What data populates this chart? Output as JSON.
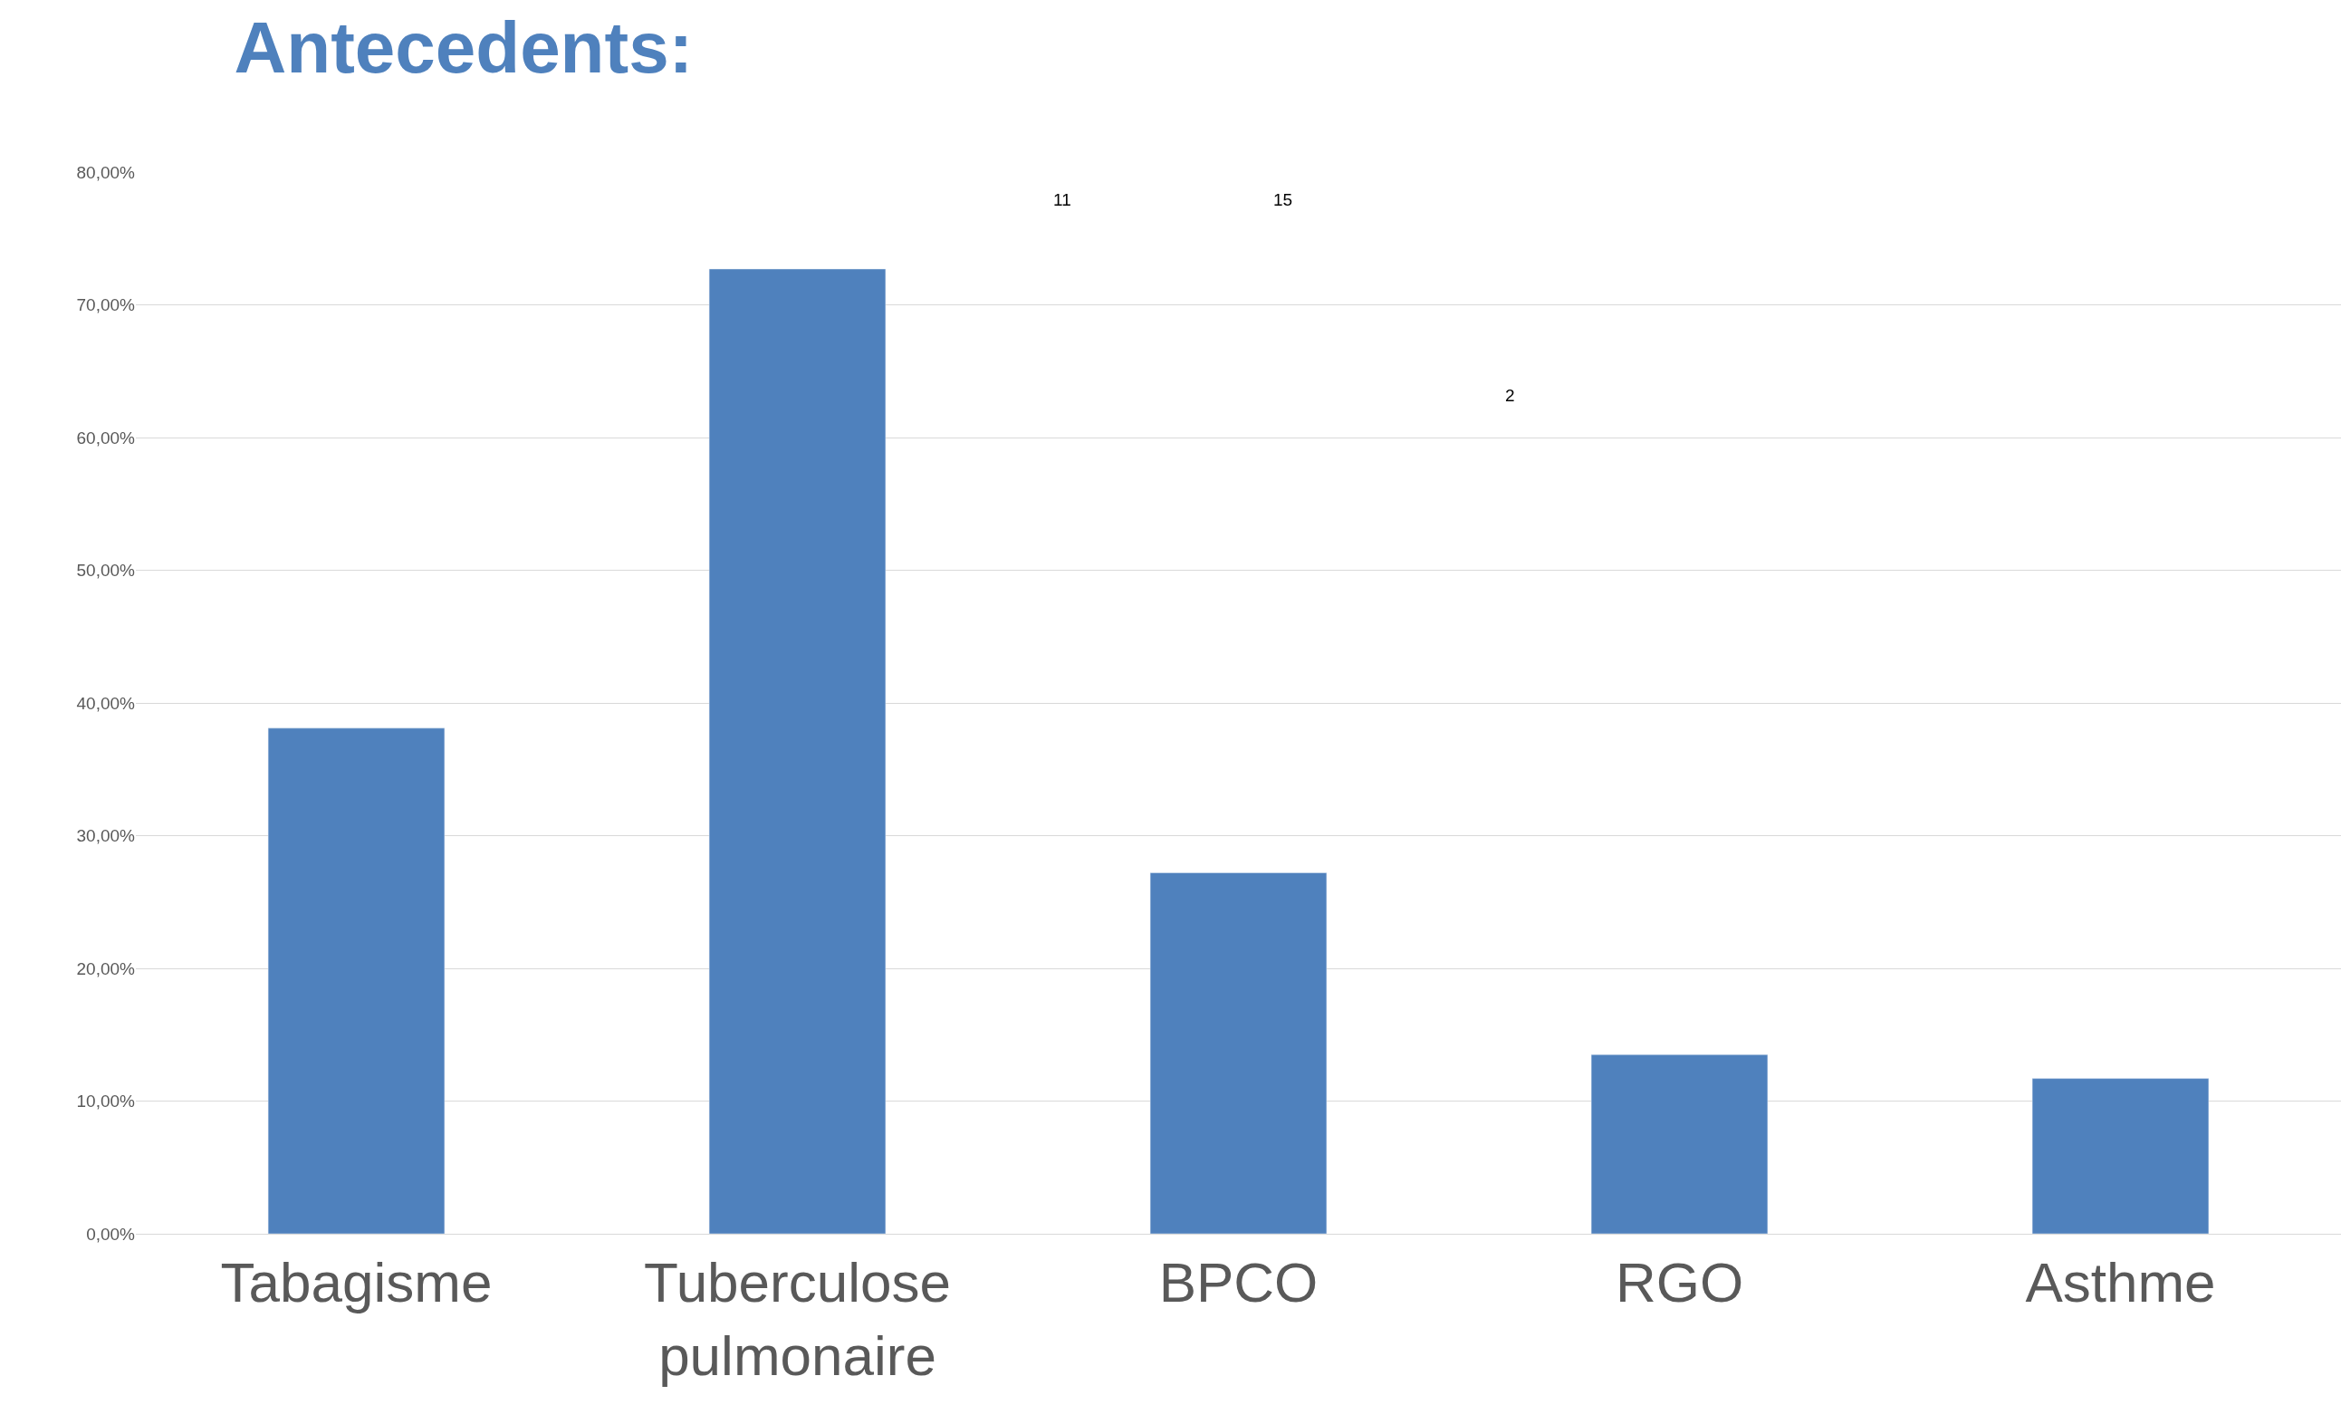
{
  "chart_data": {
    "type": "bar",
    "title": "Antecedents:",
    "categories": [
      "Tabagisme",
      "Tuberculose\npulmonaire",
      "BPCO",
      "RGO",
      "Asthme"
    ],
    "values": [
      38.1,
      72.7,
      27.2,
      13.5,
      11.7
    ],
    "color": "#4f81bd",
    "ylim": [
      0,
      80
    ],
    "yticks": [
      {
        "value": 0,
        "label": "0,00%"
      },
      {
        "value": 10,
        "label": "10,00%"
      },
      {
        "value": 20,
        "label": "20,00%"
      },
      {
        "value": 30,
        "label": "30,00%"
      },
      {
        "value": 40,
        "label": "40,00%"
      },
      {
        "value": 50,
        "label": "50,00%"
      },
      {
        "value": 60,
        "label": "60,00%"
      },
      {
        "value": 70,
        "label": "70,00%"
      },
      {
        "value": 80,
        "label": "80,00%"
      }
    ],
    "grid": "y",
    "annotations": [
      "11",
      "15",
      "2"
    ]
  }
}
